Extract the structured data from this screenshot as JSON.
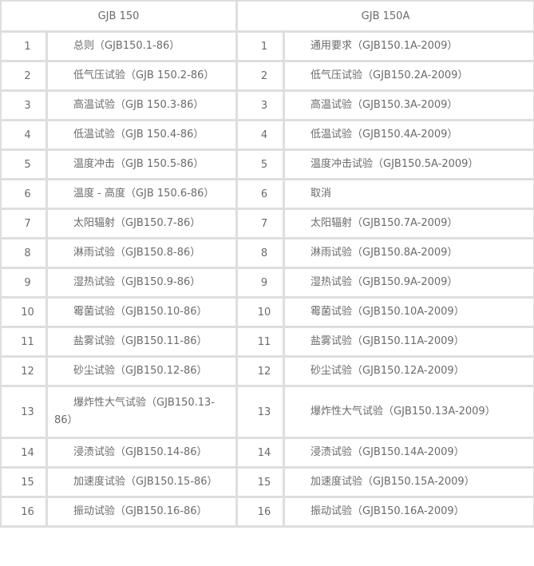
{
  "headers": [
    "GJB 150",
    "GJB  150A"
  ],
  "rows": [
    {
      "n1": "1",
      "old": "总则（GJB150.1-86）",
      "n2": "1",
      "new": "通用要求（GJB150.1A-2009）"
    },
    {
      "n1": "2",
      "old": "低气压试验（GJB 150.2-86）",
      "n2": "2",
      "new": "低气压试验（GJB150.2A-2009）"
    },
    {
      "n1": "3",
      "old": "高温试验（GJB 150.3-86）",
      "n2": "3",
      "new": "高温试验（GJB150.3A-2009）"
    },
    {
      "n1": "4",
      "old": "低温试验（GJB 150.4-86）",
      "n2": "4",
      "new": "低温试验（GJB150.4A-2009）"
    },
    {
      "n1": "5",
      "old": "温度冲击（GJB 150.5-86）",
      "n2": "5",
      "new": "温度冲击试验（GJB150.5A-2009）"
    },
    {
      "n1": "6",
      "old": "温度 - 高度（GJB 150.6-86）",
      "n2": "6",
      "new": "取消"
    },
    {
      "n1": "7",
      "old": "太阳辐射（GJB150.7-86）",
      "n2": "7",
      "new": "太阳辐射（GJB150.7A-2009）"
    },
    {
      "n1": "8",
      "old": "淋雨试验（GJB150.8-86）",
      "n2": "8",
      "new": "淋雨试验（GJB150.8A-2009）"
    },
    {
      "n1": "9",
      "old": "湿热试验（GJB150.9-86）",
      "n2": "9",
      "new": "湿热试验（GJB150.9A-2009）"
    },
    {
      "n1": "10",
      "old": "霉菌试验（GJB150.10-86）",
      "n2": "10",
      "new": "霉菌试验（GJB150.10A-2009）"
    },
    {
      "n1": "11",
      "old": "盐雾试验（GJB150.11-86）",
      "n2": "11",
      "new": "盐雾试验（GJB150.11A-2009）"
    },
    {
      "n1": "12",
      "old": "砂尘试验（GJB150.12-86）",
      "n2": "12",
      "new": "砂尘试验（GJB150.12A-2009）"
    },
    {
      "n1": "13",
      "old": "爆炸性大气试验（GJB150.13-86）",
      "n2": "13",
      "new": "爆炸性大气试验（GJB150.13A-2009）"
    },
    {
      "n1": "14",
      "old": "浸渍试验（GJB150.14-86）",
      "n2": "14",
      "new": "浸渍试验（GJB150.14A-2009）"
    },
    {
      "n1": "15",
      "old": "加速度试验（GJB150.15-86）",
      "n2": "15",
      "new": "加速度试验（GJB150.15A-2009）"
    },
    {
      "n1": "16",
      "old": "振动试验（GJB150.16-86）",
      "n2": "16",
      "new": "振动试验（GJB150.16A-2009）"
    }
  ]
}
